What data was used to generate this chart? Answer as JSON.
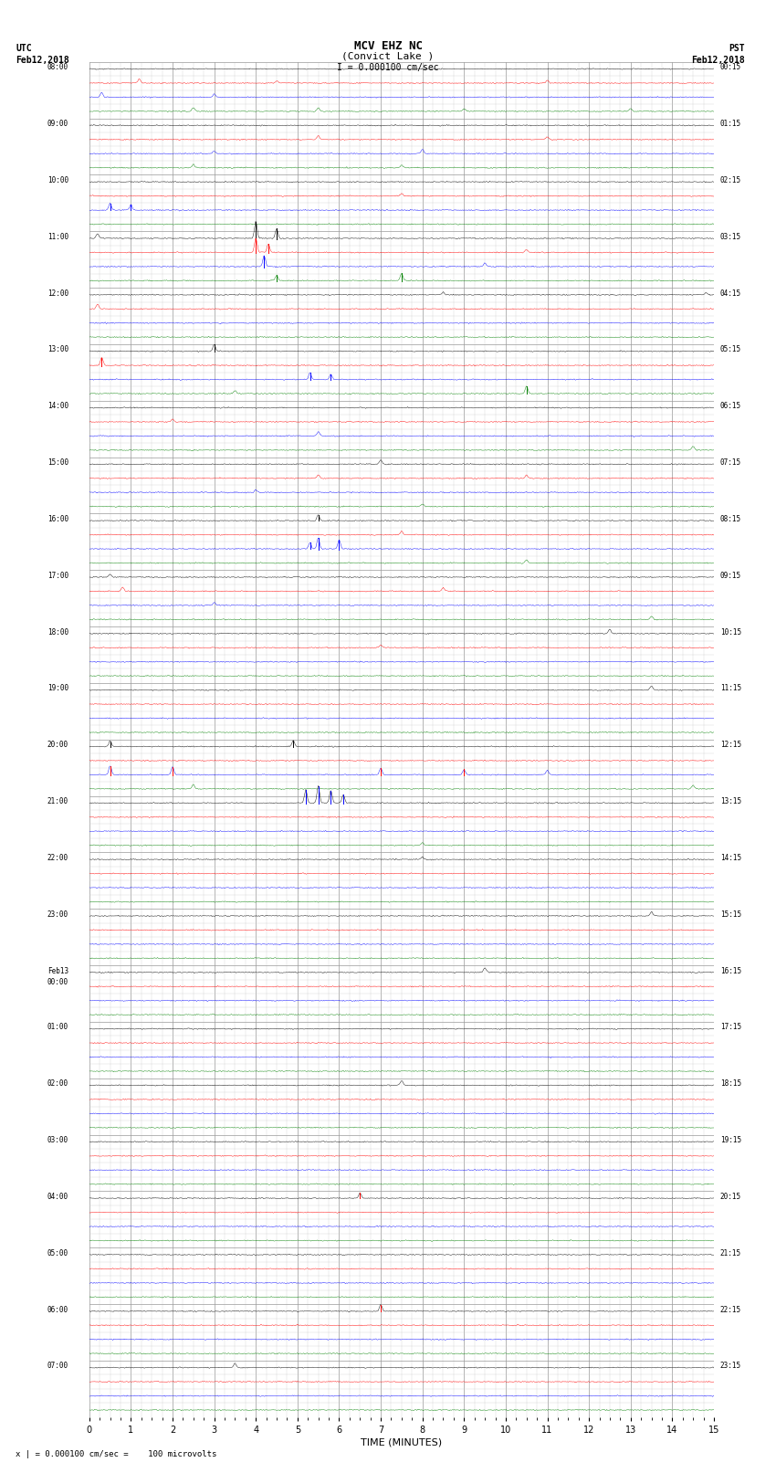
{
  "title_line1": "MCV EHZ NC",
  "title_line2": "(Convict Lake )",
  "scale_text": "I = 0.000100 cm/sec",
  "left_header": "UTC\nFeb12,2018",
  "right_header": "PST\nFeb12,2018",
  "footer_text": "x | = 0.000100 cm/sec =    100 microvolts",
  "xlabel": "TIME (MINUTES)",
  "background_color": "#ffffff",
  "grid_major_color": "#999999",
  "grid_minor_color": "#cccccc",
  "trace_colors_cycle": [
    "black",
    "red",
    "blue",
    "green"
  ],
  "n_rows": 96,
  "minutes": 15,
  "utc_labels": [
    "08:00",
    "09:00",
    "10:00",
    "11:00",
    "12:00",
    "13:00",
    "14:00",
    "15:00",
    "16:00",
    "17:00",
    "18:00",
    "19:00",
    "20:00",
    "21:00",
    "22:00",
    "23:00",
    "Feb13\n00:00",
    "01:00",
    "02:00",
    "03:00",
    "04:00",
    "05:00",
    "06:00",
    "07:00"
  ],
  "pst_labels": [
    "00:15",
    "01:15",
    "02:15",
    "03:15",
    "04:15",
    "05:15",
    "06:15",
    "07:15",
    "08:15",
    "09:15",
    "10:15",
    "11:15",
    "12:15",
    "13:15",
    "14:15",
    "15:15",
    "16:15",
    "17:15",
    "18:15",
    "19:15",
    "20:15",
    "21:15",
    "22:15",
    "23:15"
  ],
  "noise_amp": 0.12,
  "spikes": [
    {
      "row": 1,
      "t": 1.2,
      "a": 0.35,
      "c": "red"
    },
    {
      "row": 1,
      "t": 4.5,
      "a": 0.18,
      "c": "red"
    },
    {
      "row": 1,
      "t": 11.0,
      "a": 0.22,
      "c": "red"
    },
    {
      "row": 2,
      "t": 0.3,
      "a": 0.4,
      "c": "blue"
    },
    {
      "row": 2,
      "t": 3.0,
      "a": 0.25,
      "c": "blue"
    },
    {
      "row": 3,
      "t": 2.5,
      "a": 0.3,
      "c": "green"
    },
    {
      "row": 3,
      "t": 5.5,
      "a": 0.28,
      "c": "green"
    },
    {
      "row": 3,
      "t": 9.0,
      "a": 0.22,
      "c": "green"
    },
    {
      "row": 3,
      "t": 13.0,
      "a": 0.25,
      "c": "green"
    },
    {
      "row": 5,
      "t": 5.5,
      "a": 0.3,
      "c": "red"
    },
    {
      "row": 5,
      "t": 11.0,
      "a": 0.22,
      "c": "red"
    },
    {
      "row": 6,
      "t": 3.0,
      "a": 0.22,
      "c": "blue"
    },
    {
      "row": 6,
      "t": 8.0,
      "a": 0.35,
      "c": "blue"
    },
    {
      "row": 7,
      "t": 2.5,
      "a": 0.28,
      "c": "green"
    },
    {
      "row": 7,
      "t": 7.5,
      "a": 0.22,
      "c": "green"
    },
    {
      "row": 9,
      "t": 7.5,
      "a": 0.2,
      "c": "red"
    },
    {
      "row": 10,
      "t": 0.5,
      "a": 0.55,
      "c": "blue"
    },
    {
      "row": 10,
      "t": 1.0,
      "a": 0.45,
      "c": "blue"
    },
    {
      "row": 12,
      "t": 0.2,
      "a": 0.4,
      "c": "black"
    },
    {
      "row": 12,
      "t": 4.0,
      "a": 1.4,
      "c": "black"
    },
    {
      "row": 12,
      "t": 4.5,
      "a": 0.8,
      "c": "black"
    },
    {
      "row": 13,
      "t": 4.0,
      "a": 1.2,
      "c": "red"
    },
    {
      "row": 13,
      "t": 4.3,
      "a": 0.7,
      "c": "red"
    },
    {
      "row": 13,
      "t": 10.5,
      "a": 0.25,
      "c": "red"
    },
    {
      "row": 14,
      "t": 4.2,
      "a": 0.9,
      "c": "blue"
    },
    {
      "row": 14,
      "t": 9.5,
      "a": 0.3,
      "c": "blue"
    },
    {
      "row": 15,
      "t": 4.5,
      "a": 0.45,
      "c": "green"
    },
    {
      "row": 15,
      "t": 7.5,
      "a": 0.6,
      "c": "green"
    },
    {
      "row": 16,
      "t": 8.5,
      "a": 0.2,
      "c": "black"
    },
    {
      "row": 16,
      "t": 14.8,
      "a": 0.18,
      "c": "black"
    },
    {
      "row": 17,
      "t": 0.2,
      "a": 0.4,
      "c": "red"
    },
    {
      "row": 20,
      "t": 3.0,
      "a": 0.55,
      "c": "black"
    },
    {
      "row": 21,
      "t": 0.3,
      "a": 0.65,
      "c": "red"
    },
    {
      "row": 22,
      "t": 5.3,
      "a": 0.55,
      "c": "blue"
    },
    {
      "row": 22,
      "t": 5.8,
      "a": 0.45,
      "c": "blue"
    },
    {
      "row": 23,
      "t": 3.5,
      "a": 0.25,
      "c": "green"
    },
    {
      "row": 23,
      "t": 10.5,
      "a": 0.6,
      "c": "green"
    },
    {
      "row": 25,
      "t": 2.0,
      "a": 0.22,
      "c": "red"
    },
    {
      "row": 26,
      "t": 5.5,
      "a": 0.35,
      "c": "blue"
    },
    {
      "row": 27,
      "t": 14.5,
      "a": 0.3,
      "c": "green"
    },
    {
      "row": 28,
      "t": 7.0,
      "a": 0.35,
      "c": "black"
    },
    {
      "row": 29,
      "t": 5.5,
      "a": 0.3,
      "c": "red"
    },
    {
      "row": 29,
      "t": 10.5,
      "a": 0.25,
      "c": "red"
    },
    {
      "row": 30,
      "t": 4.0,
      "a": 0.22,
      "c": "blue"
    },
    {
      "row": 31,
      "t": 8.0,
      "a": 0.2,
      "c": "green"
    },
    {
      "row": 32,
      "t": 5.5,
      "a": 0.45,
      "c": "black"
    },
    {
      "row": 33,
      "t": 7.5,
      "a": 0.28,
      "c": "red"
    },
    {
      "row": 34,
      "t": 5.5,
      "a": 0.9,
      "c": "blue"
    },
    {
      "row": 34,
      "t": 6.0,
      "a": 0.75,
      "c": "blue"
    },
    {
      "row": 34,
      "t": 5.3,
      "a": 0.5,
      "c": "blue"
    },
    {
      "row": 35,
      "t": 10.5,
      "a": 0.25,
      "c": "green"
    },
    {
      "row": 36,
      "t": 0.5,
      "a": 0.25,
      "c": "black"
    },
    {
      "row": 37,
      "t": 0.8,
      "a": 0.35,
      "c": "red"
    },
    {
      "row": 37,
      "t": 8.5,
      "a": 0.3,
      "c": "red"
    },
    {
      "row": 38,
      "t": 3.0,
      "a": 0.25,
      "c": "blue"
    },
    {
      "row": 39,
      "t": 13.5,
      "a": 0.28,
      "c": "green"
    },
    {
      "row": 40,
      "t": 12.5,
      "a": 0.35,
      "c": "black"
    },
    {
      "row": 41,
      "t": 7.0,
      "a": 0.22,
      "c": "red"
    },
    {
      "row": 44,
      "t": 13.5,
      "a": 0.3,
      "c": "green"
    },
    {
      "row": 48,
      "t": 0.5,
      "a": 0.45,
      "c": "black"
    },
    {
      "row": 48,
      "t": 4.9,
      "a": 0.5,
      "c": "black"
    },
    {
      "row": 50,
      "t": 0.5,
      "a": 0.75,
      "c": "red"
    },
    {
      "row": 50,
      "t": 2.0,
      "a": 0.65,
      "c": "red"
    },
    {
      "row": 50,
      "t": 7.0,
      "a": 0.55,
      "c": "red"
    },
    {
      "row": 50,
      "t": 9.0,
      "a": 0.45,
      "c": "red"
    },
    {
      "row": 50,
      "t": 11.0,
      "a": 0.35,
      "c": "red"
    },
    {
      "row": 51,
      "t": 2.5,
      "a": 0.35,
      "c": "blue"
    },
    {
      "row": 51,
      "t": 14.5,
      "a": 0.3,
      "c": "blue"
    },
    {
      "row": 52,
      "t": 5.2,
      "a": 1.1,
      "c": "blue"
    },
    {
      "row": 52,
      "t": 5.5,
      "a": 1.4,
      "c": "blue"
    },
    {
      "row": 52,
      "t": 5.8,
      "a": 1.0,
      "c": "blue"
    },
    {
      "row": 52,
      "t": 6.1,
      "a": 0.7,
      "c": "blue"
    },
    {
      "row": 55,
      "t": 8.0,
      "a": 0.22,
      "c": "red"
    },
    {
      "row": 56,
      "t": 8.0,
      "a": 0.22,
      "c": "black"
    },
    {
      "row": 60,
      "t": 13.5,
      "a": 0.3,
      "c": "green"
    },
    {
      "row": 64,
      "t": 9.5,
      "a": 0.35,
      "c": "red"
    },
    {
      "row": 72,
      "t": 7.5,
      "a": 0.4,
      "c": "green"
    },
    {
      "row": 80,
      "t": 6.5,
      "a": 0.45,
      "c": "red"
    },
    {
      "row": 88,
      "t": 7.0,
      "a": 0.55,
      "c": "red"
    },
    {
      "row": 92,
      "t": 3.5,
      "a": 0.35,
      "c": "green"
    }
  ]
}
